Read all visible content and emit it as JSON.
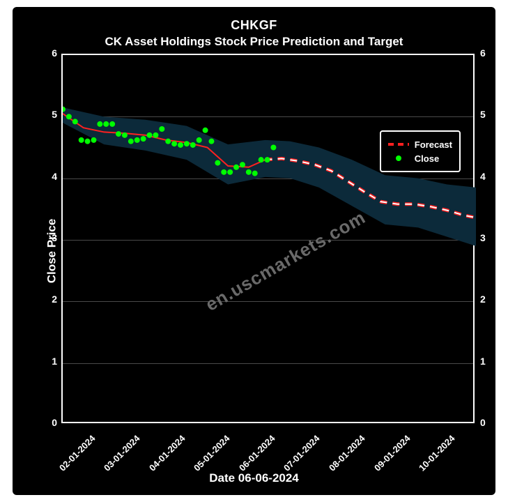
{
  "chart": {
    "type": "line",
    "title_main": "CHKGF",
    "title_sub": "CK Asset Holdings Stock Price Prediction and Target",
    "title_fontsize_main": 18,
    "title_fontsize_sub": 17,
    "ylabel": "Close Price",
    "xlabel": "Date 06-06-2024",
    "label_fontsize": 17,
    "background_color": "#000000",
    "outer_background": "#ffffff",
    "border_color": "#ffffff",
    "grid_color": "#4a4a4a",
    "ylim": [
      0,
      6
    ],
    "yticks": [
      0,
      1,
      2,
      3,
      4,
      5,
      6
    ],
    "tick_fontsize": 14,
    "xticks": [
      "02-01-2024",
      "03-01-2024",
      "04-01-2024",
      "05-01-2024",
      "06-01-2024",
      "07-01-2024",
      "08-01-2024",
      "09-01-2024",
      "10-01-2024"
    ],
    "xtick_rotation": -45,
    "watermark_text": "en.uscmarkets.com",
    "watermark_color": "#6a6a6a",
    "watermark_rotation": -30,
    "legend": {
      "position": "right",
      "items": [
        {
          "label": "Forecast",
          "style": "dashed-line",
          "color": "#ff2020"
        },
        {
          "label": "Close",
          "style": "dot",
          "color": "#00ff00"
        }
      ]
    },
    "series": {
      "close": {
        "type": "scatter",
        "color": "#00ff00",
        "marker_size": 5,
        "x": [
          0.0,
          0.015,
          0.03,
          0.045,
          0.06,
          0.075,
          0.09,
          0.105,
          0.12,
          0.135,
          0.15,
          0.165,
          0.18,
          0.195,
          0.21,
          0.225,
          0.24,
          0.255,
          0.27,
          0.285,
          0.3,
          0.315,
          0.33,
          0.345,
          0.36,
          0.375,
          0.39,
          0.405,
          0.42,
          0.435,
          0.45,
          0.465,
          0.48,
          0.495,
          0.51
        ],
        "y": [
          5.12,
          5.0,
          4.92,
          4.62,
          4.6,
          4.62,
          4.88,
          4.88,
          4.88,
          4.72,
          4.7,
          4.6,
          4.62,
          4.64,
          4.7,
          4.7,
          4.8,
          4.6,
          4.56,
          4.54,
          4.56,
          4.54,
          4.62,
          4.78,
          4.6,
          4.25,
          4.1,
          4.1,
          4.18,
          4.22,
          4.1,
          4.08,
          4.3,
          4.3,
          4.5
        ]
      },
      "forecast_solid": {
        "type": "line",
        "color": "#ff2020",
        "line_width": 2,
        "x": [
          0.0,
          0.05,
          0.1,
          0.15,
          0.2,
          0.25,
          0.3,
          0.35,
          0.4,
          0.45,
          0.49
        ],
        "y": [
          5.05,
          4.82,
          4.75,
          4.73,
          4.7,
          4.62,
          4.58,
          4.5,
          4.2,
          4.18,
          4.3
        ]
      },
      "forecast_dashed": {
        "type": "line",
        "color": "#ff2020",
        "inner_color": "#ffffff",
        "line_width": 5,
        "dash": "10,8",
        "x": [
          0.49,
          0.53,
          0.57,
          0.61,
          0.65,
          0.69,
          0.73,
          0.77,
          0.81,
          0.85,
          0.89,
          0.93,
          0.97,
          1.0
        ],
        "y": [
          4.3,
          4.32,
          4.28,
          4.22,
          4.12,
          3.95,
          3.78,
          3.62,
          3.58,
          3.58,
          3.54,
          3.48,
          3.4,
          3.36
        ]
      },
      "confidence_band": {
        "type": "area",
        "color": "#0c2a3a",
        "x": [
          0.0,
          0.1,
          0.2,
          0.3,
          0.4,
          0.49,
          0.55,
          0.62,
          0.7,
          0.78,
          0.86,
          0.93,
          1.0
        ],
        "y_upper": [
          5.15,
          5.0,
          4.95,
          4.85,
          4.55,
          4.62,
          4.6,
          4.5,
          4.3,
          4.05,
          4.0,
          3.9,
          3.85
        ],
        "y_lower": [
          4.9,
          4.55,
          4.45,
          4.3,
          3.9,
          4.02,
          4.0,
          3.85,
          3.55,
          3.25,
          3.2,
          3.05,
          2.9
        ]
      }
    }
  }
}
